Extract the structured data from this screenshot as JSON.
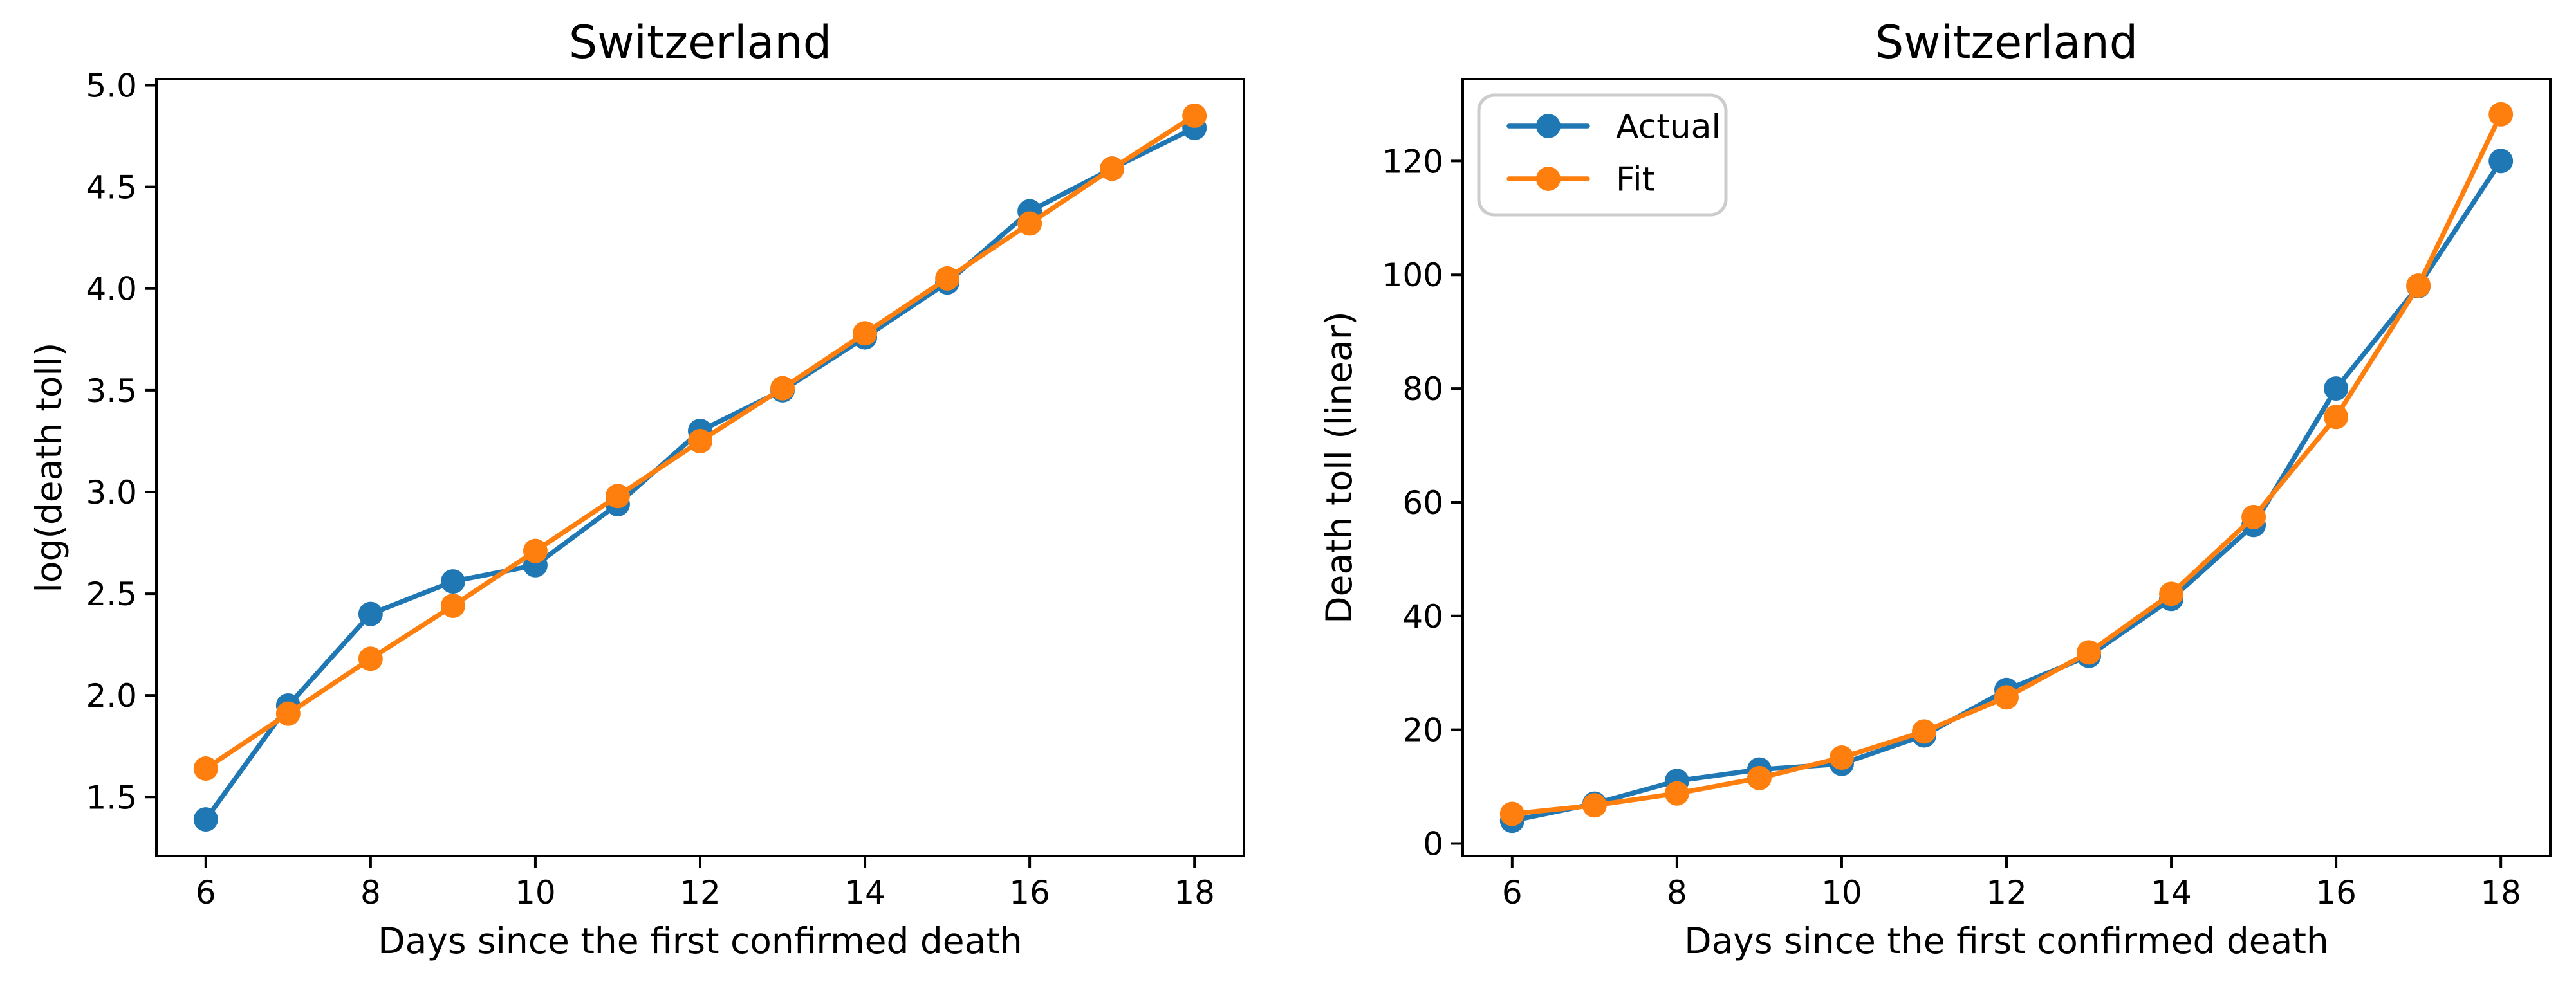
{
  "figure": {
    "background": "#ffffff",
    "text_color": "#000000",
    "spine_color": "#000000",
    "legend_border_color": "#cccccc",
    "legend_fill": "#ffffff"
  },
  "chart_data": [
    {
      "type": "line",
      "title": "Switzerland",
      "xlabel": "Days since the first confirmed death",
      "ylabel": "log(death toll)",
      "x": [
        6,
        7,
        8,
        9,
        10,
        11,
        12,
        13,
        14,
        15,
        16,
        17,
        18
      ],
      "xlim": [
        5.4,
        18.6
      ],
      "ylim": [
        1.21,
        5.03
      ],
      "xticks": [
        6,
        8,
        10,
        12,
        14,
        16,
        18
      ],
      "yticks": [
        1.5,
        2.0,
        2.5,
        3.0,
        3.5,
        4.0,
        4.5,
        5.0
      ],
      "ytick_decimals": 1,
      "grid": false,
      "legend": null,
      "series": [
        {
          "name": "Actual",
          "color": "#1f77b4",
          "marker": "o",
          "values": [
            1.39,
            1.95,
            2.4,
            2.56,
            2.64,
            2.94,
            3.3,
            3.5,
            3.76,
            4.03,
            4.38,
            4.59,
            4.79
          ]
        },
        {
          "name": "Fit",
          "color": "#ff7f0e",
          "marker": "o",
          "values": [
            1.64,
            1.91,
            2.18,
            2.44,
            2.71,
            2.98,
            3.25,
            3.51,
            3.78,
            4.05,
            4.32,
            4.59,
            4.85
          ]
        }
      ]
    },
    {
      "type": "line",
      "title": "Switzerland",
      "xlabel": "Days since the first confirmed death",
      "ylabel": "Death toll (linear)",
      "x": [
        6,
        7,
        8,
        9,
        10,
        11,
        12,
        13,
        14,
        15,
        16,
        17,
        18
      ],
      "xlim": [
        5.4,
        18.6
      ],
      "ylim": [
        -2.2,
        134.4
      ],
      "xticks": [
        6,
        8,
        10,
        12,
        14,
        16,
        18
      ],
      "yticks": [
        0,
        20,
        40,
        60,
        80,
        100,
        120
      ],
      "ytick_decimals": 0,
      "grid": false,
      "legend": {
        "position": "upper left",
        "entries": [
          "Actual",
          "Fit"
        ]
      },
      "series": [
        {
          "name": "Actual",
          "color": "#1f77b4",
          "marker": "o",
          "values": [
            4,
            7,
            11,
            13,
            14,
            19,
            27,
            33,
            43,
            56,
            80,
            98,
            120
          ]
        },
        {
          "name": "Fit",
          "color": "#ff7f0e",
          "marker": "o",
          "values": [
            5.2,
            6.7,
            8.8,
            11.5,
            15.1,
            19.7,
            25.7,
            33.6,
            43.9,
            57.4,
            75.0,
            98.1,
            128.2
          ]
        }
      ]
    }
  ]
}
